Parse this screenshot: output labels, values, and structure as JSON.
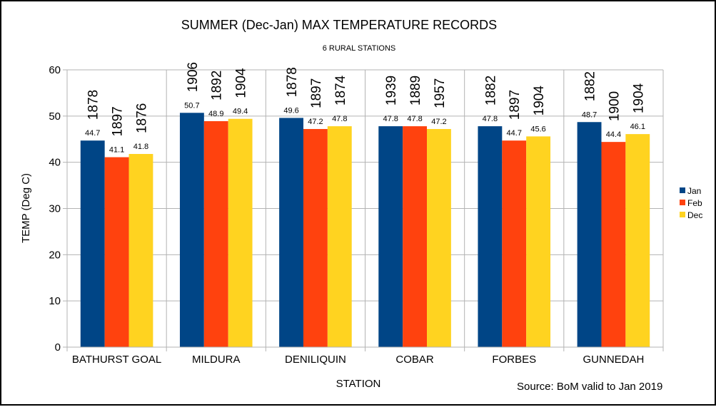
{
  "chart_data": {
    "type": "bar",
    "title": "SUMMER (Dec-Jan) MAX TEMPERATURE RECORDS",
    "subtitle": "6 RURAL STATIONS",
    "xlabel": "STATION",
    "ylabel": "TEMP (Deg C)",
    "ylim": [
      0,
      60
    ],
    "yticks": [
      0,
      10,
      20,
      30,
      40,
      50,
      60
    ],
    "categories": [
      "BATHURST GOAL",
      "MILDURA",
      "DENILIQUIN",
      "COBAR",
      "FORBES",
      "GUNNEDAH"
    ],
    "series": [
      {
        "name": "Jan",
        "color": "#004586",
        "values": [
          44.7,
          50.7,
          49.6,
          47.8,
          47.8,
          48.7
        ],
        "years": [
          "1878",
          "1906",
          "1878",
          "1939",
          "1882",
          "1882"
        ]
      },
      {
        "name": "Feb",
        "color": "#ff420e",
        "values": [
          41.1,
          48.9,
          47.2,
          47.8,
          44.7,
          44.4
        ],
        "years": [
          "1897",
          "1892",
          "1897",
          "1889",
          "1897",
          "1900"
        ]
      },
      {
        "name": "Dec",
        "color": "#ffd320",
        "values": [
          41.8,
          49.4,
          47.8,
          47.2,
          45.6,
          46.1
        ],
        "years": [
          "1876",
          "1904",
          "1874",
          "1957",
          "1904",
          "1904"
        ]
      }
    ],
    "grid": true,
    "legend": "right",
    "source_note": "Source: BoM valid to Jan 2019"
  }
}
